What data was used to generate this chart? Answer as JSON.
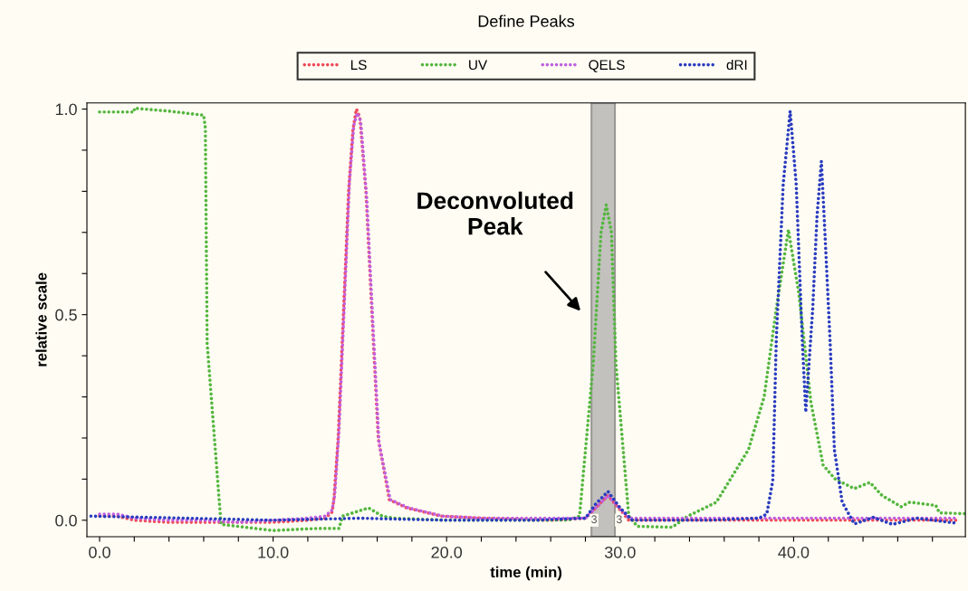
{
  "chart_data": {
    "type": "line",
    "title": "Define Peaks",
    "xlabel": "time (min)",
    "ylabel": "relative scale",
    "xlim": [
      -0.73,
      49.9
    ],
    "ylim": [
      -0.04,
      1.015
    ],
    "xticks": [
      {
        "value": 0,
        "label": "0.0"
      },
      {
        "value": 2,
        "label": null
      },
      {
        "value": 4,
        "label": null
      },
      {
        "value": 6,
        "label": null
      },
      {
        "value": 8,
        "label": null
      },
      {
        "value": 10,
        "label": "10.0"
      },
      {
        "value": 12,
        "label": null
      },
      {
        "value": 14,
        "label": null
      },
      {
        "value": 16,
        "label": null
      },
      {
        "value": 18,
        "label": null
      },
      {
        "value": 20,
        "label": "20.0"
      },
      {
        "value": 22,
        "label": null
      },
      {
        "value": 24,
        "label": null
      },
      {
        "value": 26,
        "label": null
      },
      {
        "value": 28,
        "label": null
      },
      {
        "value": 30,
        "label": "30.0"
      },
      {
        "value": 32,
        "label": null
      },
      {
        "value": 34,
        "label": null
      },
      {
        "value": 36,
        "label": null
      },
      {
        "value": 38,
        "label": null
      },
      {
        "value": 40,
        "label": "40.0"
      },
      {
        "value": 42,
        "label": null
      },
      {
        "value": 44,
        "label": null
      },
      {
        "value": 46,
        "label": null
      },
      {
        "value": 48,
        "label": null
      }
    ],
    "yticks": [
      {
        "value": 0,
        "label": "0.0"
      },
      {
        "value": 0.1,
        "label": null
      },
      {
        "value": 0.2,
        "label": null
      },
      {
        "value": 0.3,
        "label": null
      },
      {
        "value": 0.4,
        "label": null
      },
      {
        "value": 0.5,
        "label": "0.5"
      },
      {
        "value": 0.6,
        "label": null
      },
      {
        "value": 0.7,
        "label": null
      },
      {
        "value": 0.8,
        "label": null
      },
      {
        "value": 0.9,
        "label": null
      },
      {
        "value": 1.0,
        "label": "1.0"
      }
    ],
    "legend": "top",
    "line_style": "dotted",
    "series": [
      {
        "name": "LS",
        "color": "#f04a5a",
        "x": [
          0,
          1,
          2,
          4,
          6,
          8,
          10,
          12,
          13,
          13.4,
          13.5,
          13.75,
          14.05,
          14.35,
          14.6,
          14.8,
          15.0,
          15.35,
          15.7,
          16.06,
          16.7,
          17.7,
          19.7,
          22,
          26,
          28,
          29.3,
          30.5,
          34,
          38,
          40,
          44,
          48,
          49.5
        ],
        "values": [
          0.01,
          0.01,
          0.0,
          -0.005,
          -0.005,
          -0.005,
          -0.005,
          0.0,
          0.005,
          0.02,
          0.05,
          0.2,
          0.5,
          0.8,
          0.95,
          1.0,
          0.98,
          0.8,
          0.5,
          0.2,
          0.05,
          0.03,
          0.01,
          0.005,
          0.0,
          0.005,
          0.06,
          0.0,
          0.0,
          0.0,
          0.0,
          0.0,
          0.0,
          0.0
        ]
      },
      {
        "name": "UV",
        "color": "#55b640",
        "x": [
          0,
          2.0,
          2.0,
          4,
          6.0,
          6.1,
          6.1,
          6.2,
          7,
          8,
          10,
          12.5,
          13.8,
          14,
          15.5,
          16.3,
          17,
          20,
          24,
          27,
          27.66,
          28.45,
          28.9,
          29.2,
          29.5,
          29.76,
          30.5,
          31,
          33.0,
          33.9,
          35.55,
          37.4,
          38.3,
          39.0,
          39.7,
          40.3,
          41.0,
          41.7,
          42.4,
          43.5,
          44.4,
          45.1,
          46.2,
          46.7,
          48.2,
          48.4,
          49.9
        ],
        "values": [
          0.993,
          0.993,
          1.002,
          0.995,
          0.985,
          0.953,
          0.923,
          0.43,
          -0.01,
          -0.015,
          -0.025,
          -0.02,
          -0.02,
          0.01,
          0.03,
          0.01,
          0.005,
          0.0,
          0.0,
          0.0,
          0.01,
          0.38,
          0.7,
          0.767,
          0.7,
          0.38,
          0.01,
          -0.015,
          -0.017,
          0.01,
          0.044,
          0.172,
          0.3,
          0.514,
          0.707,
          0.552,
          0.286,
          0.134,
          0.1,
          0.077,
          0.092,
          0.06,
          0.033,
          0.044,
          0.036,
          0.018,
          0.016
        ]
      },
      {
        "name": "QELS",
        "color": "#c060e0",
        "x": [
          0,
          1,
          2,
          4,
          6,
          8,
          10,
          12,
          13,
          13.4,
          13.55,
          13.8,
          14.1,
          14.4,
          14.65,
          14.85,
          15.05,
          15.4,
          15.75,
          16.1,
          16.75,
          17.8,
          19.8,
          22,
          26,
          28,
          29.3,
          30.5,
          34,
          38,
          40,
          44,
          48,
          49.5
        ],
        "values": [
          0.015,
          0.015,
          0.005,
          0.0,
          0.0,
          -0.005,
          0.0,
          0.005,
          0.01,
          0.025,
          0.06,
          0.22,
          0.52,
          0.82,
          0.96,
          0.99,
          0.97,
          0.78,
          0.48,
          0.19,
          0.05,
          0.03,
          0.01,
          0.005,
          0.005,
          0.005,
          0.06,
          0.005,
          0.005,
          0.005,
          0.005,
          0.005,
          0.005,
          0.005
        ]
      },
      {
        "name": "dRI",
        "color": "#2a3cc0",
        "x": [
          -0.5,
          5,
          10,
          15,
          20,
          25,
          28.0,
          28.6,
          29.3,
          30.0,
          30.7,
          35,
          38.0,
          38.45,
          38.8,
          39.0,
          39.4,
          39.8,
          40.15,
          40.5,
          40.7,
          41.1,
          41.35,
          41.6,
          41.8,
          42.1,
          42.35,
          42.8,
          43.5,
          44.6,
          45.7,
          47.1,
          49.4
        ],
        "values": [
          0.01,
          0.005,
          0.0,
          0.005,
          0.0,
          0.0,
          0.005,
          0.04,
          0.07,
          0.03,
          0.0,
          0.0,
          0.005,
          0.015,
          0.097,
          0.437,
          0.817,
          0.995,
          0.817,
          0.437,
          0.263,
          0.514,
          0.74,
          0.873,
          0.703,
          0.437,
          0.172,
          0.044,
          -0.009,
          0.007,
          -0.01,
          0.005,
          -0.007
        ]
      }
    ],
    "bands": [
      {
        "axis": "x",
        "from": 28.35,
        "to": 29.7,
        "color": "#9a9a9a"
      }
    ],
    "annotations": [
      "Deconvoluted\nPeak",
      {
        "text": "3",
        "x": 28.5,
        "y": 0.0
      },
      {
        "text": "3",
        "x": 29.95,
        "y": 0.0
      }
    ]
  }
}
